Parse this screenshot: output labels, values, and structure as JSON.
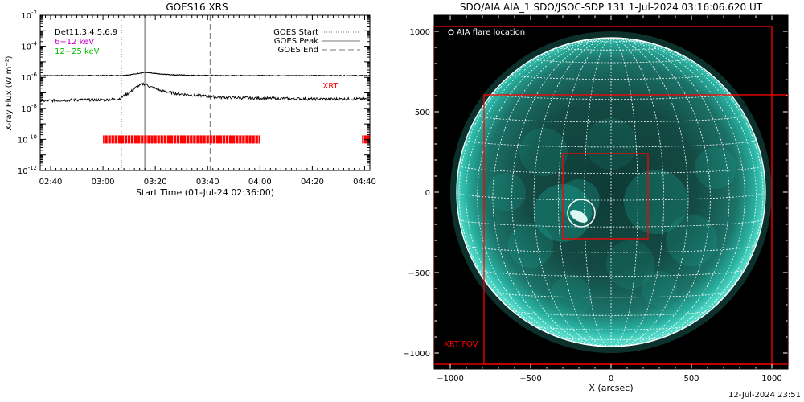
{
  "chart_data": [
    {
      "type": "line",
      "title": "GOES16 XRS",
      "xlabel": "Start Time (01-Jul-24 02:36:00)",
      "ylabel": "X-ray Flux (W m⁻²)",
      "y_scale": "log",
      "ylim": [
        1e-12,
        0.01
      ],
      "xlim": [
        "02:36",
        "04:42"
      ],
      "x_ticks": [
        "02:40",
        "03:00",
        "03:20",
        "03:40",
        "04:00",
        "04:20",
        "04:40"
      ],
      "y_ticks": [
        {
          "value": 0.01,
          "base": "10",
          "exp": "-2"
        },
        {
          "value": 0.0001,
          "base": "10",
          "exp": "-4"
        },
        {
          "value": 1e-06,
          "base": "10",
          "exp": "-6"
        },
        {
          "value": 1e-08,
          "base": "10",
          "exp": "-8"
        },
        {
          "value": 1e-10,
          "base": "10",
          "exp": "-10"
        },
        {
          "value": 1e-12,
          "base": "10",
          "exp": "-12"
        }
      ],
      "header_lines": [
        {
          "text": "Det11,3,4,5,6,9",
          "color": "#000000"
        },
        {
          "text": "6−12 keV",
          "color": "#cc00cc"
        },
        {
          "text": "12−25 keV",
          "color": "#00bb00"
        }
      ],
      "legend": {
        "placement": "top-right",
        "items": [
          {
            "label": "GOES Start",
            "style": "dotted"
          },
          {
            "label": "GOES Peak",
            "style": "solid"
          },
          {
            "label": "GOES End",
            "style": "dashed"
          }
        ]
      },
      "event_lines": [
        {
          "name": "GOES Start",
          "time": "03:07",
          "style": "dotted"
        },
        {
          "name": "GOES Peak",
          "time": "03:16",
          "style": "solid"
        },
        {
          "name": "GOES End",
          "time": "03:41",
          "style": "dashed"
        }
      ],
      "series": [
        {
          "color": "#000000",
          "x": [
            "02:36",
            "02:50",
            "03:00",
            "03:08",
            "03:12",
            "03:14",
            "03:16",
            "03:18",
            "03:22",
            "03:28",
            "03:35",
            "03:45",
            "04:00",
            "04:20",
            "04:42"
          ],
          "values": [
            1.3e-06,
            1.3e-06,
            1.3e-06,
            1.35e-06,
            1.6e-06,
            1.9e-06,
            2.1e-06,
            1.9e-06,
            1.6e-06,
            1.45e-06,
            1.35e-06,
            1.3e-06,
            1.3e-06,
            1.3e-06,
            1.3e-06
          ]
        },
        {
          "color": "#000000",
          "x": [
            "02:36",
            "02:50",
            "03:00",
            "03:06",
            "03:10",
            "03:13",
            "03:15",
            "03:16",
            "03:18",
            "03:22",
            "03:28",
            "03:35",
            "03:45",
            "04:00",
            "04:20",
            "04:42"
          ],
          "values": [
            3e-08,
            3.5e-08,
            3.5e-08,
            4e-08,
            1e-07,
            2.5e-07,
            3.6e-07,
            3.8e-07,
            2.5e-07,
            1.4e-07,
            9e-08,
            7e-08,
            5e-08,
            4.5e-08,
            4e-08,
            4e-08
          ]
        }
      ],
      "annotations": [
        {
          "text": "XRT",
          "color": "#ff0000",
          "time": "04:24",
          "value": 5e-07
        }
      ],
      "xrt_coverage": {
        "label": "XRT",
        "color": "#ff0000",
        "value": 1e-10,
        "intervals": [
          [
            "03:00",
            "04:00"
          ],
          [
            "04:39",
            "04:42"
          ]
        ]
      }
    },
    {
      "type": "image",
      "title": "SDO/AIA AIA_1 SDO/JSOC-SDP 131  1-Jul-2024 03:16:06.620 UT",
      "xlabel": "X (arcsec)",
      "ylabel": "",
      "xlim": [
        -1100,
        1100
      ],
      "ylim": [
        -1100,
        1100
      ],
      "x_ticks": [
        "−1000",
        "−500",
        "0",
        "500",
        "1000"
      ],
      "x_tick_values": [
        -1000,
        -500,
        0,
        500,
        1000
      ],
      "y_ticks": [
        "1000",
        "500",
        "0",
        "−500",
        "−1000"
      ],
      "y_tick_values": [
        1000,
        500,
        0,
        -500,
        -1000
      ],
      "solar_radius_arcsec": 960,
      "grid_spacing_deg": 10,
      "legend_label": "AIA flare location",
      "fov_label": "XRT FOV",
      "flare_location": {
        "x": -185,
        "y": -130,
        "r_arcsec": 85
      },
      "fov_boxes": [
        {
          "name": "outer",
          "x0": -1100,
          "x1": 1000,
          "y0": -1070,
          "y1": 1030
        },
        {
          "name": "xrt-fov",
          "x0": -790,
          "x1": 1110,
          "y0": -1070,
          "y1": 605
        },
        {
          "name": "inner",
          "x0": -300,
          "x1": 230,
          "y0": -290,
          "y1": 240
        }
      ],
      "colors": {
        "box": "#ff0000",
        "disk": "#1aaa98",
        "grid": "#ffffff",
        "background": "#000000"
      }
    }
  ],
  "footer": {
    "timestamp": "12-Jul-2024 23:51"
  }
}
